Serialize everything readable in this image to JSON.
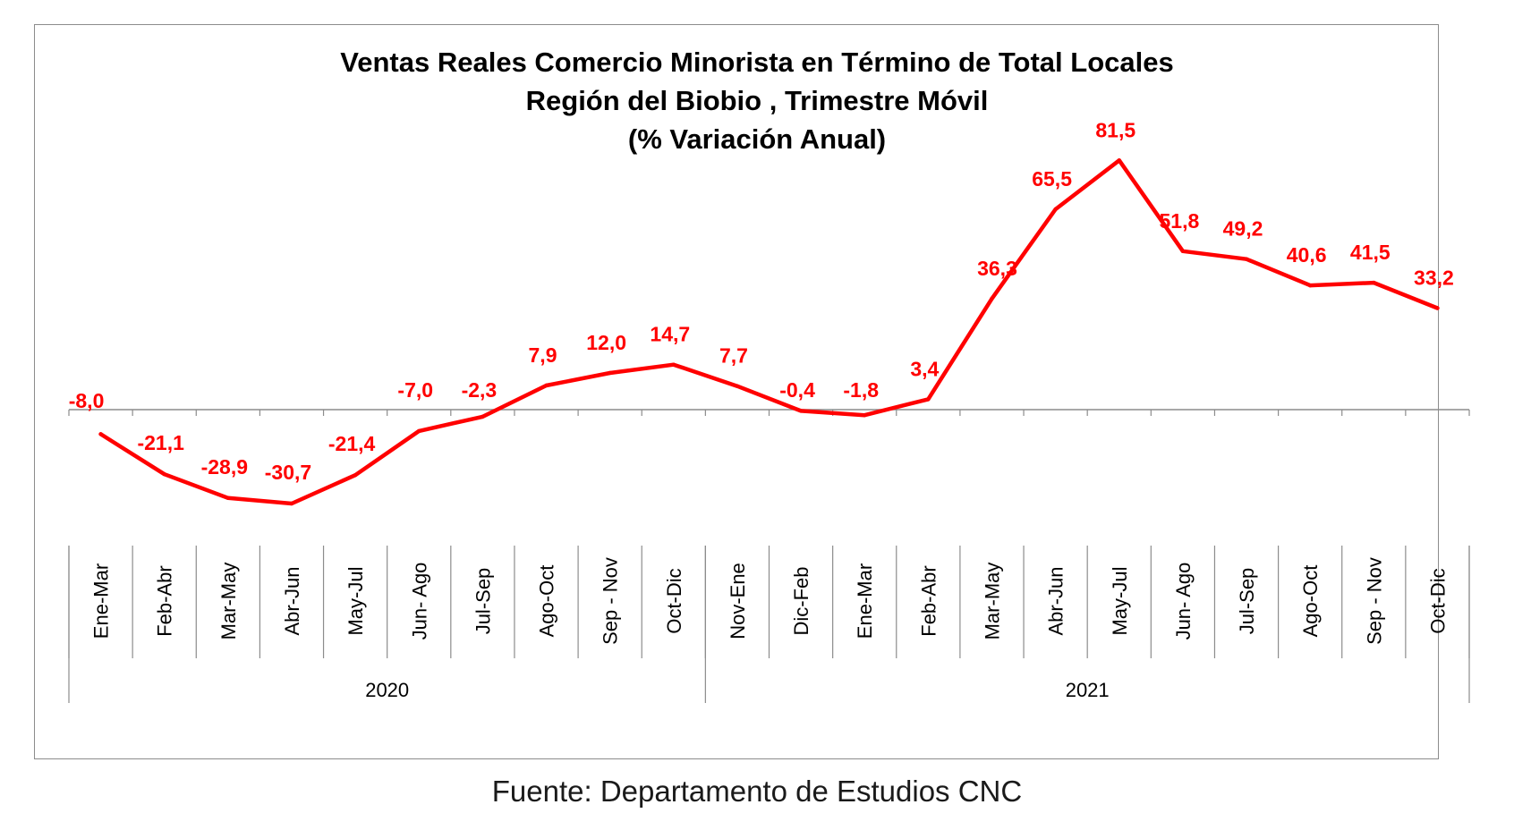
{
  "chart_data": {
    "type": "line",
    "title_lines": [
      "Ventas Reales Comercio Minorista  en Término de Total Locales",
      "Región del Biobio , Trimestre Móvil",
      "(% Variación Anual)"
    ],
    "categories": [
      "Ene-Mar",
      "Feb-Abr",
      "Mar-May",
      "Abr-Jun",
      "May-Jul",
      "Jun- Ago",
      "Jul-Sep",
      "Ago-Oct",
      "Sep - Nov",
      "Oct-Dic",
      "Nov-Ene",
      "Dic-Feb",
      "Ene-Mar",
      "Feb-Abr",
      "Mar-May",
      "Abr-Jun",
      "May-Jul",
      "Jun- Ago",
      "Jul-Sep",
      "Ago-Oct",
      "Sep - Nov",
      "Oct-Dic"
    ],
    "groups": [
      {
        "label": "2020",
        "start": 0,
        "end": 9
      },
      {
        "label": "2021",
        "start": 10,
        "end": 21
      }
    ],
    "series": [
      {
        "values": [
          -8.0,
          -21.1,
          -28.9,
          -30.7,
          -21.4,
          -7.0,
          -2.3,
          7.9,
          12.0,
          14.7,
          7.7,
          -0.4,
          -1.8,
          3.4,
          36.3,
          65.5,
          81.5,
          51.8,
          49.2,
          40.6,
          41.5,
          33.2
        ],
        "labels": [
          "-8,0",
          "-21,1",
          "-28,9",
          "-30,7",
          "-21,4",
          "-7,0",
          "-2,3",
          "7,9",
          "12,0",
          "14,7",
          "7,7",
          "-0,4",
          "-1,8",
          "3,4",
          "36,3",
          "65,5",
          "81,5",
          "51,8",
          "49,2",
          "40,6",
          "41,5",
          "33,2"
        ],
        "color": "#ff0000"
      }
    ],
    "grid": false,
    "legend": "none"
  },
  "source": "Fuente: Departamento de Estudios CNC"
}
